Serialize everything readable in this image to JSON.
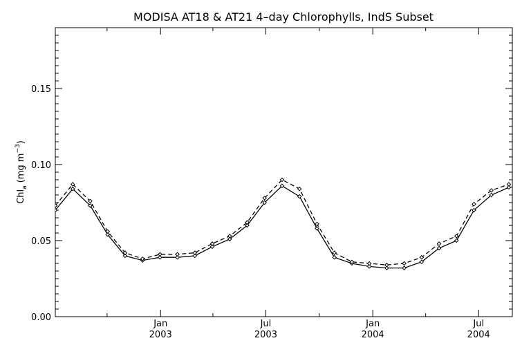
{
  "chart_data": {
    "type": "line",
    "title": "MODISA AT18 & AT21 4–day Chlorophylls, IndS Subset",
    "ylabel": {
      "main": "Chl",
      "subscript": "a",
      "units_pre": "(mg m",
      "units_sup": "−3",
      "units_post": ")"
    },
    "xlabel": "",
    "ylim": [
      0.0,
      0.19
    ],
    "xlim": [
      "2002-07-04",
      "2004-08-28"
    ],
    "y_ticks": [
      {
        "value": 0.0,
        "label": "0.00"
      },
      {
        "value": 0.05,
        "label": "0.05"
      },
      {
        "value": 0.1,
        "label": "0.10"
      },
      {
        "value": 0.15,
        "label": "0.15"
      }
    ],
    "x_ticks": [
      {
        "date": "2003-01-01",
        "month": "Jan",
        "year": "2003"
      },
      {
        "date": "2003-07-01",
        "month": "Jul",
        "year": "2003"
      },
      {
        "date": "2004-01-01",
        "month": "Jan",
        "year": "2004"
      },
      {
        "date": "2004-07-01",
        "month": "Jul",
        "year": "2004"
      }
    ],
    "x": [
      "2002-07-04",
      "2002-08-03",
      "2002-09-02",
      "2002-10-02",
      "2002-11-01",
      "2002-12-01",
      "2002-12-31",
      "2003-01-30",
      "2003-03-01",
      "2003-03-31",
      "2003-04-30",
      "2003-05-30",
      "2003-06-29",
      "2003-07-29",
      "2003-08-28",
      "2003-09-27",
      "2003-10-27",
      "2003-11-26",
      "2003-12-26",
      "2004-01-25",
      "2004-02-24",
      "2004-03-25",
      "2004-04-24",
      "2004-05-24",
      "2004-06-23",
      "2004-07-23",
      "2004-08-22"
    ],
    "series": [
      {
        "line_style": "solid",
        "color": "#000000",
        "values": [
          0.07,
          0.084,
          0.073,
          0.054,
          0.04,
          0.037,
          0.039,
          0.039,
          0.04,
          0.046,
          0.051,
          0.06,
          0.075,
          0.086,
          0.079,
          0.058,
          0.039,
          0.035,
          0.033,
          0.032,
          0.032,
          0.036,
          0.045,
          0.05,
          0.07,
          0.08,
          0.085
        ]
      },
      {
        "line_style": "dashed",
        "color": "#000000",
        "values": [
          0.073,
          0.087,
          0.076,
          0.056,
          0.042,
          0.038,
          0.041,
          0.041,
          0.042,
          0.048,
          0.053,
          0.062,
          0.078,
          0.09,
          0.084,
          0.061,
          0.042,
          0.036,
          0.035,
          0.034,
          0.035,
          0.039,
          0.048,
          0.053,
          0.074,
          0.083,
          0.087
        ]
      }
    ],
    "grid": false,
    "legend": "none"
  }
}
